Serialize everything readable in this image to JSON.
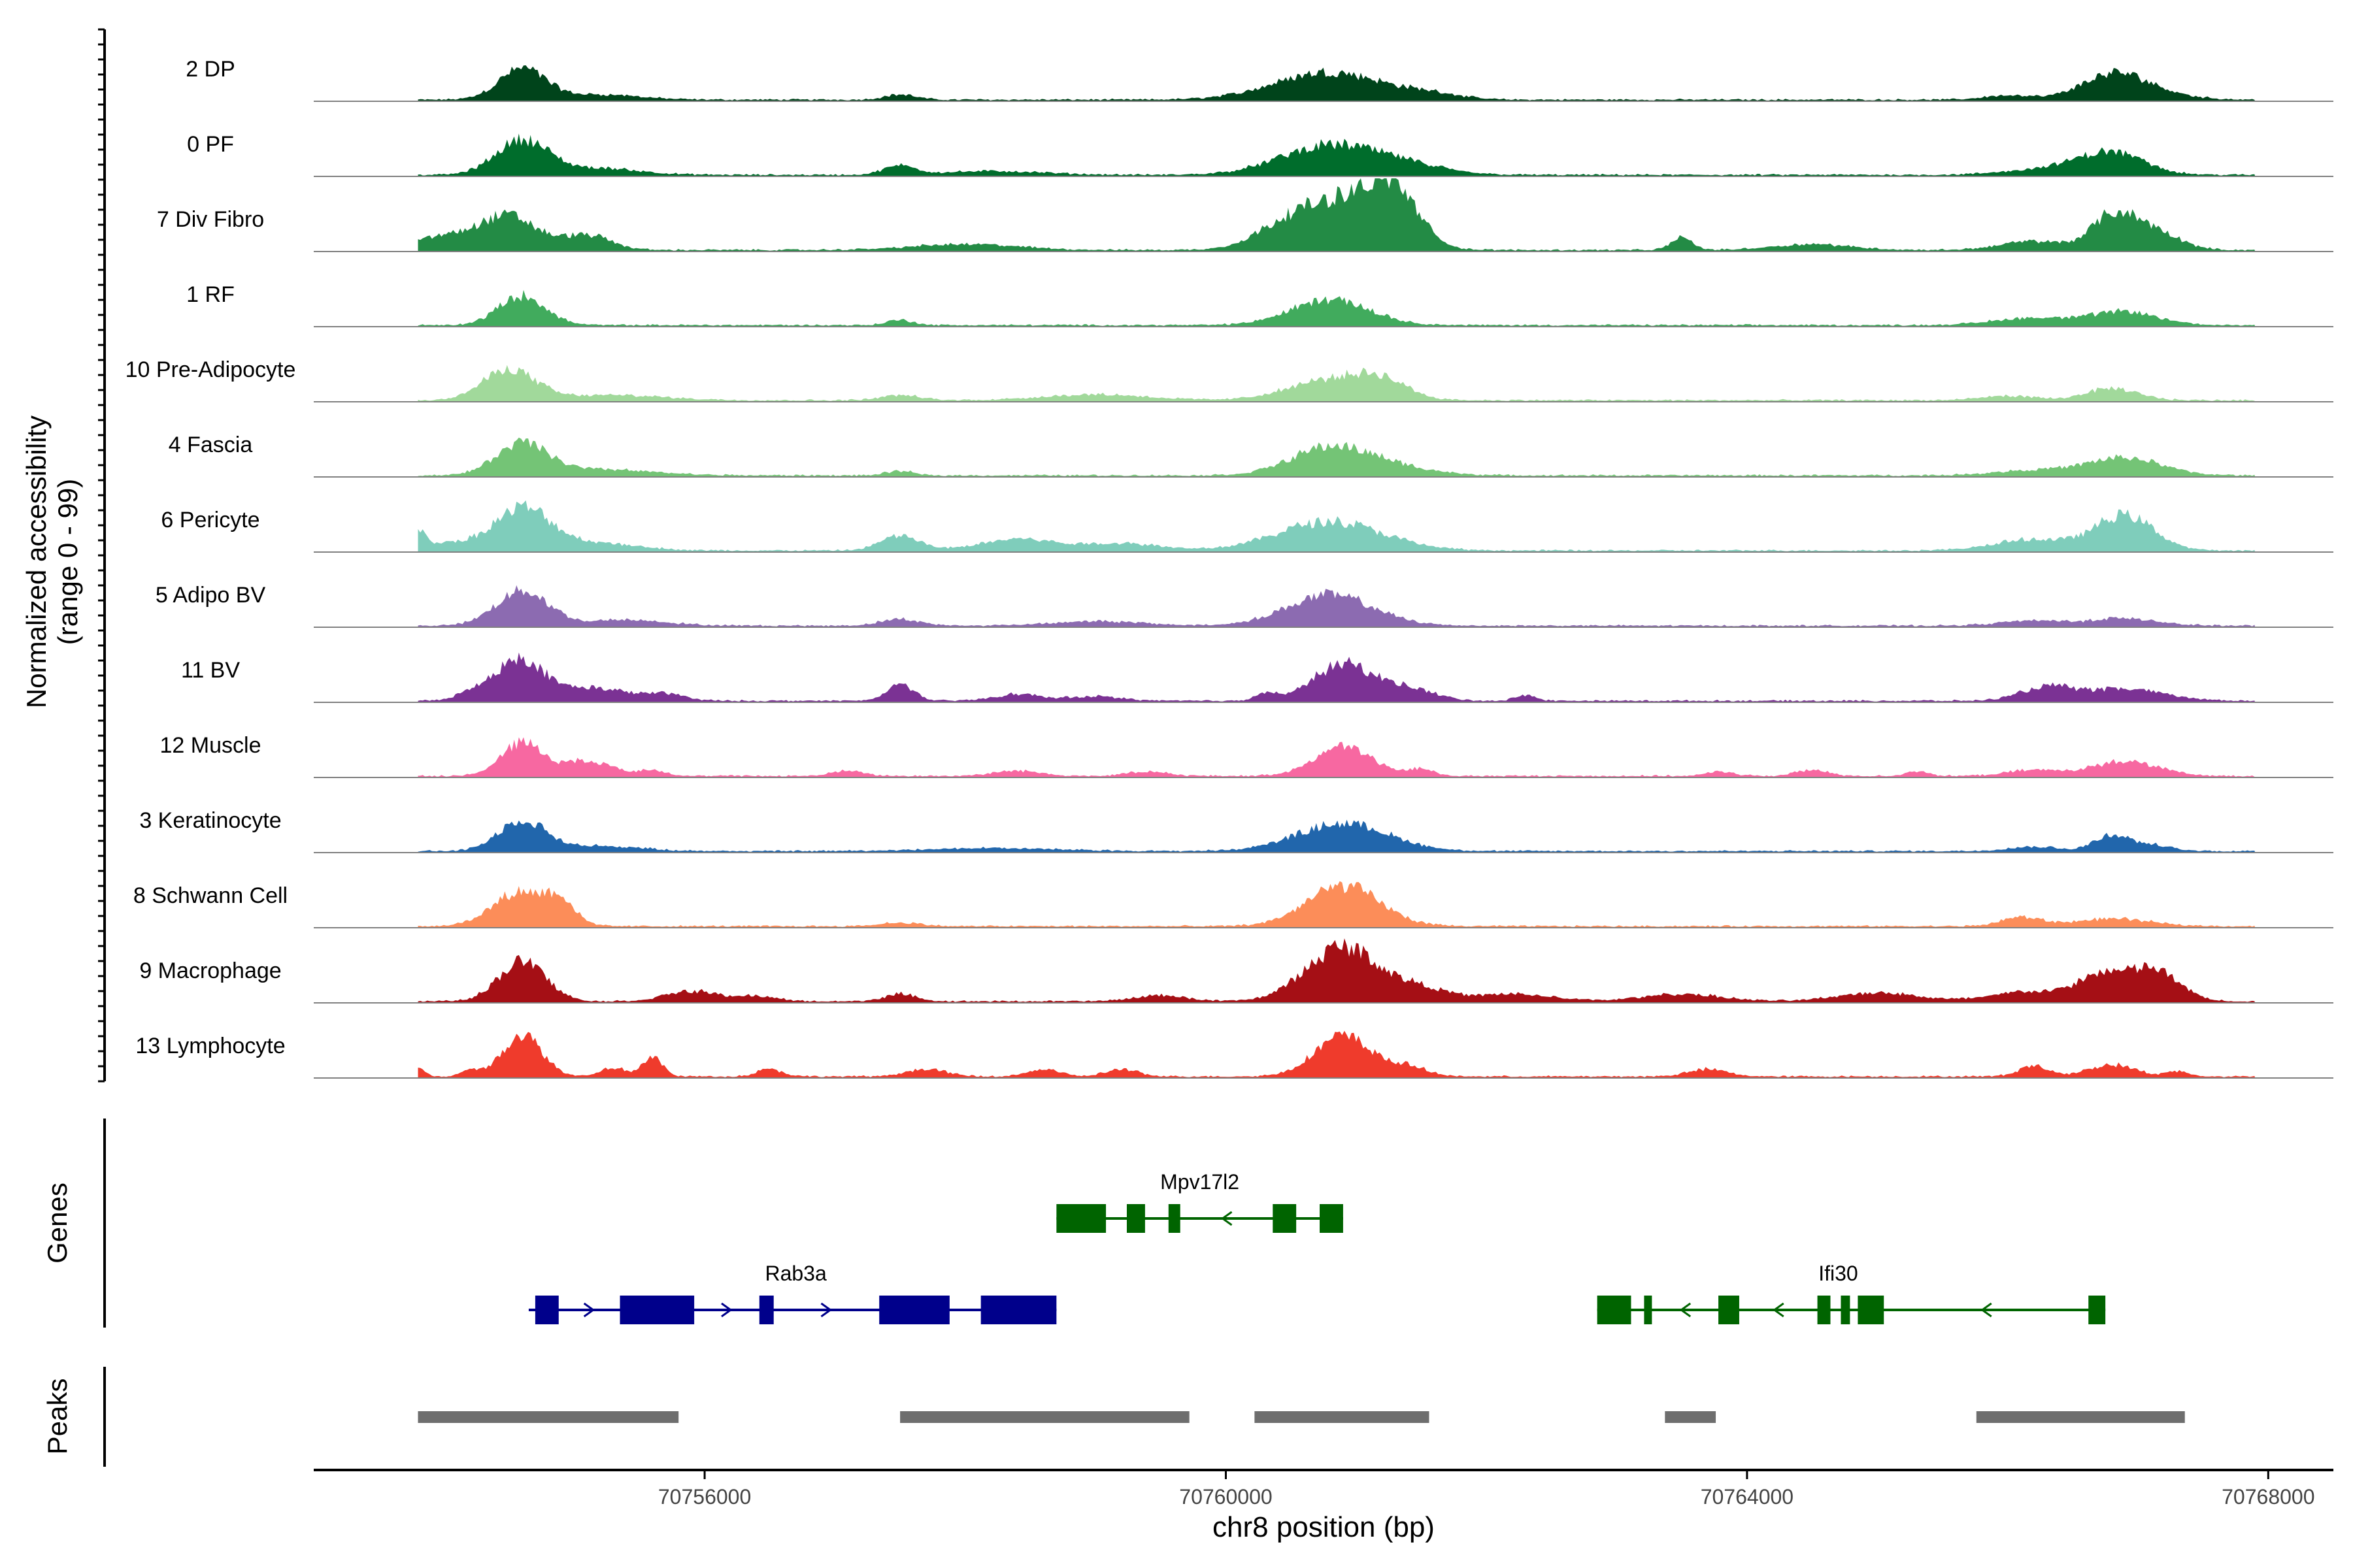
{
  "chart_data": {
    "type": "area",
    "title": "",
    "chromosome": "chr8",
    "xlabel": "chr8 position (bp)",
    "ylabel_line1": "Normalized accessibility",
    "ylabel_line2": "(range 0 - 99)",
    "xlim": [
      70753000,
      70768500
    ],
    "x_ticks": [
      70756000,
      70760000,
      70764000,
      70768000
    ],
    "x_tick_labels": [
      "70756000",
      "70760000",
      "70764000",
      "70768000"
    ],
    "ylim": [
      0,
      99
    ],
    "track_panel_labels": {
      "genes": "Genes",
      "peaks": "Peaks"
    },
    "series": [
      {
        "name": "2 DP",
        "color": "#00441b",
        "peaks": [
          [
            70754600,
            0.42,
            180
          ],
          [
            70755200,
            0.07,
            300
          ],
          [
            70757500,
            0.07,
            120
          ],
          [
            70760800,
            0.38,
            420
          ],
          [
            70761600,
            0.06,
            200
          ],
          [
            70766000,
            0.06,
            180
          ],
          [
            70766800,
            0.27,
            240
          ],
          [
            70767000,
            0.12,
            300
          ]
        ]
      },
      {
        "name": "0 PF",
        "color": "#006d2c",
        "peaks": [
          [
            70754600,
            0.48,
            200
          ],
          [
            70755200,
            0.09,
            300
          ],
          [
            70757500,
            0.12,
            120
          ],
          [
            70758200,
            0.05,
            400
          ],
          [
            70760800,
            0.4,
            380
          ],
          [
            70761400,
            0.1,
            300
          ],
          [
            70766800,
            0.3,
            250
          ],
          [
            70766300,
            0.08,
            300
          ]
        ]
      },
      {
        "name": "7 Div Fibro",
        "color": "#238b45",
        "peaks": [
          [
            70754500,
            0.45,
            220
          ],
          [
            70754000,
            0.18,
            250
          ],
          [
            70755100,
            0.2,
            180
          ],
          [
            70758000,
            0.08,
            400
          ],
          [
            70760500,
            0.35,
            260
          ],
          [
            70761000,
            0.65,
            300
          ],
          [
            70761300,
            0.55,
            180
          ],
          [
            70763500,
            0.18,
            80
          ],
          [
            70764500,
            0.08,
            300
          ],
          [
            70766800,
            0.42,
            160
          ],
          [
            70766200,
            0.12,
            250
          ],
          [
            70767100,
            0.28,
            200
          ]
        ]
      },
      {
        "name": "1 RF",
        "color": "#41ab5d",
        "peaks": [
          [
            70754600,
            0.4,
            180
          ],
          [
            70757500,
            0.07,
            100
          ],
          [
            70760800,
            0.35,
            300
          ],
          [
            70766200,
            0.1,
            300
          ],
          [
            70766900,
            0.18,
            250
          ]
        ]
      },
      {
        "name": "10 Pre-Adipocyte",
        "color": "#a1d99b",
        "peaks": [
          [
            70754500,
            0.42,
            200
          ],
          [
            70755300,
            0.07,
            400
          ],
          [
            70757500,
            0.07,
            150
          ],
          [
            70759000,
            0.08,
            400
          ],
          [
            70760800,
            0.28,
            320
          ],
          [
            70761200,
            0.22,
            200
          ],
          [
            70766000,
            0.06,
            200
          ],
          [
            70766800,
            0.16,
            200
          ]
        ]
      },
      {
        "name": "4 Fascia",
        "color": "#74c476",
        "peaks": [
          [
            70754600,
            0.42,
            200
          ],
          [
            70755200,
            0.08,
            400
          ],
          [
            70757500,
            0.06,
            100
          ],
          [
            70760800,
            0.38,
            300
          ],
          [
            70761300,
            0.1,
            300
          ],
          [
            70766900,
            0.24,
            280
          ],
          [
            70766200,
            0.07,
            300
          ]
        ]
      },
      {
        "name": "6 Pericyte",
        "color": "#7fcdbb",
        "peaks": [
          [
            70754600,
            0.58,
            220
          ],
          [
            70754000,
            0.1,
            200
          ],
          [
            70753800,
            0.2,
            60
          ],
          [
            70755200,
            0.1,
            300
          ],
          [
            70757500,
            0.2,
            150
          ],
          [
            70758400,
            0.16,
            280
          ],
          [
            70759200,
            0.1,
            300
          ],
          [
            70760800,
            0.4,
            400
          ],
          [
            70766200,
            0.15,
            300
          ],
          [
            70766900,
            0.48,
            220
          ]
        ]
      },
      {
        "name": "5 Adipo BV",
        "color": "#8c6bb1",
        "peaks": [
          [
            70754600,
            0.48,
            200
          ],
          [
            70755400,
            0.08,
            300
          ],
          [
            70757500,
            0.09,
            150
          ],
          [
            70759000,
            0.06,
            350
          ],
          [
            70760800,
            0.42,
            330
          ],
          [
            70766200,
            0.07,
            250
          ],
          [
            70766900,
            0.1,
            250
          ]
        ]
      },
      {
        "name": "11 BV",
        "color": "#7b3294",
        "peaks": [
          [
            70754600,
            0.52,
            160
          ],
          [
            70754300,
            0.18,
            150
          ],
          [
            70755100,
            0.18,
            300
          ],
          [
            70755700,
            0.08,
            150
          ],
          [
            70757500,
            0.24,
            100
          ],
          [
            70758400,
            0.09,
            180
          ],
          [
            70759000,
            0.06,
            200
          ],
          [
            70760300,
            0.1,
            80
          ],
          [
            70760900,
            0.5,
            230
          ],
          [
            70761400,
            0.16,
            200
          ],
          [
            70762300,
            0.07,
            80
          ],
          [
            70766300,
            0.18,
            200
          ],
          [
            70766900,
            0.16,
            300
          ]
        ]
      },
      {
        "name": "12 Muscle",
        "color": "#f768a1",
        "peaks": [
          [
            70754600,
            0.45,
            160
          ],
          [
            70755100,
            0.2,
            200
          ],
          [
            70755600,
            0.08,
            100
          ],
          [
            70757100,
            0.07,
            120
          ],
          [
            70758400,
            0.07,
            180
          ],
          [
            70759400,
            0.06,
            150
          ],
          [
            70760900,
            0.4,
            220
          ],
          [
            70761500,
            0.09,
            100
          ],
          [
            70763800,
            0.06,
            100
          ],
          [
            70764500,
            0.08,
            120
          ],
          [
            70765300,
            0.07,
            80
          ],
          [
            70766200,
            0.08,
            200
          ],
          [
            70766900,
            0.2,
            250
          ]
        ]
      },
      {
        "name": "3 Keratinocyte",
        "color": "#2166ac",
        "peaks": [
          [
            70754600,
            0.42,
            180
          ],
          [
            70755200,
            0.07,
            300
          ],
          [
            70758200,
            0.04,
            500
          ],
          [
            70760900,
            0.38,
            350
          ],
          [
            70766200,
            0.06,
            200
          ],
          [
            70766800,
            0.22,
            130
          ],
          [
            70767100,
            0.08,
            150
          ]
        ]
      },
      {
        "name": "8 Schwann Cell",
        "color": "#fc8d59",
        "peaks": [
          [
            70754600,
            0.48,
            220
          ],
          [
            70754900,
            0.25,
            100
          ],
          [
            70757500,
            0.05,
            150
          ],
          [
            70760900,
            0.55,
            280
          ],
          [
            70766100,
            0.12,
            150
          ],
          [
            70766800,
            0.1,
            300
          ]
        ]
      },
      {
        "name": "9 Macrophage",
        "color": "#a50f15",
        "peaks": [
          [
            70754600,
            0.55,
            180
          ],
          [
            70755900,
            0.14,
            200
          ],
          [
            70756400,
            0.07,
            150
          ],
          [
            70757500,
            0.1,
            120
          ],
          [
            70759500,
            0.08,
            200
          ],
          [
            70760900,
            0.75,
            280
          ],
          [
            70761500,
            0.16,
            200
          ],
          [
            70762200,
            0.1,
            300
          ],
          [
            70763500,
            0.1,
            300
          ],
          [
            70765000,
            0.12,
            300
          ],
          [
            70766200,
            0.14,
            300
          ],
          [
            70766700,
            0.3,
            160
          ],
          [
            70767100,
            0.45,
            200
          ]
        ]
      },
      {
        "name": "13 Lymphocyte",
        "color": "#ef3b2c",
        "peaks": [
          [
            70754600,
            0.58,
            150
          ],
          [
            70753800,
            0.12,
            50
          ],
          [
            70754200,
            0.1,
            60
          ],
          [
            70755300,
            0.12,
            100
          ],
          [
            70755600,
            0.25,
            80
          ],
          [
            70756500,
            0.1,
            100
          ],
          [
            70757700,
            0.1,
            150
          ],
          [
            70758600,
            0.1,
            120
          ],
          [
            70759200,
            0.1,
            120
          ],
          [
            70760900,
            0.55,
            220
          ],
          [
            70761400,
            0.12,
            150
          ],
          [
            70763700,
            0.1,
            150
          ],
          [
            70766200,
            0.14,
            120
          ],
          [
            70766800,
            0.16,
            180
          ],
          [
            70767300,
            0.07,
            80
          ]
        ]
      }
    ],
    "genes": [
      {
        "name": "Mpv17l2",
        "strand": "-",
        "color": "#006400",
        "start": 70758700,
        "end": 70760900,
        "row": 0,
        "label_pos": 70759800,
        "exons": [
          [
            70758700,
            70759080
          ],
          [
            70759240,
            70759380
          ],
          [
            70759560,
            70759650
          ],
          [
            70760360,
            70760540
          ],
          [
            70760720,
            70760900
          ]
        ]
      },
      {
        "name": "Rab3a",
        "strand": "+",
        "color": "#00008b",
        "start": 70754650,
        "end": 70758700,
        "row": 1,
        "label_pos": 70756700,
        "exons": [
          [
            70754700,
            70754880
          ],
          [
            70755350,
            70755920
          ],
          [
            70756420,
            70756530
          ],
          [
            70757340,
            70757880
          ],
          [
            70758120,
            70758700
          ]
        ]
      },
      {
        "name": "Ifi30",
        "strand": "-",
        "color": "#006400",
        "start": 70762850,
        "end": 70766750,
        "row": 1,
        "label_pos": 70764700,
        "exons": [
          [
            70762850,
            70763110
          ],
          [
            70763210,
            70763270
          ],
          [
            70763780,
            70763940
          ],
          [
            70764540,
            70764640
          ],
          [
            70764720,
            70764790
          ],
          [
            70764850,
            70765050
          ],
          [
            70766620,
            70766750
          ]
        ]
      }
    ],
    "peaks": [
      [
        70753800,
        70755800
      ],
      [
        70757500,
        70759720
      ],
      [
        70760220,
        70761560
      ],
      [
        70763370,
        70763760
      ],
      [
        70765760,
        70767360
      ]
    ]
  }
}
